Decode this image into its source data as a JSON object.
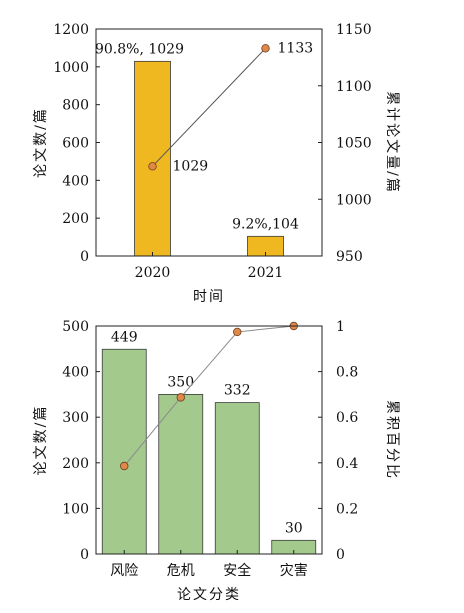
{
  "chart_data": [
    {
      "type": "bar",
      "categories": [
        "2020",
        "2021"
      ],
      "series": [
        {
          "values": [
            1029,
            104
          ],
          "labels": [
            "90.8%, 1029",
            "9.2%,104"
          ],
          "color": "#f0b820",
          "axis": "left"
        },
        {
          "type": "line",
          "values": [
            1029,
            1133
          ],
          "labels": [
            "1029",
            "1133"
          ],
          "color": "#e08848",
          "axis": "right"
        }
      ],
      "xlabel": "时间",
      "ylabel": "论文数/篇",
      "y2label": "累计论文量/篇",
      "ylim": [
        0,
        1200
      ],
      "y2lim": [
        950,
        1150
      ],
      "yticks": [
        "0",
        "200",
        "400",
        "600",
        "800",
        "1000",
        "1200"
      ],
      "y2ticks": [
        "950",
        "1000",
        "1050",
        "1100",
        "1150"
      ],
      "grid": false
    },
    {
      "type": "bar",
      "categories": [
        "风险",
        "危机",
        "安全",
        "灾害"
      ],
      "series": [
        {
          "values": [
            449,
            350,
            332,
            30
          ],
          "labels": [
            "449",
            "350",
            "332",
            "30"
          ],
          "color": "#a4c98c",
          "axis": "left"
        },
        {
          "type": "line",
          "values": [
            0.386,
            0.687,
            0.974,
            1.0
          ],
          "color": "#e08848",
          "axis": "right"
        }
      ],
      "xlabel": "论文分类",
      "ylabel": "论文数/篇",
      "y2label": "累积百分比",
      "ylim": [
        0,
        500
      ],
      "y2lim": [
        0,
        1
      ],
      "yticks": [
        "0",
        "100",
        "200",
        "300",
        "400",
        "500"
      ],
      "y2ticks": [
        "0",
        "0.2",
        "0.4",
        "0.6",
        "0.8",
        "1"
      ],
      "grid": false
    }
  ]
}
